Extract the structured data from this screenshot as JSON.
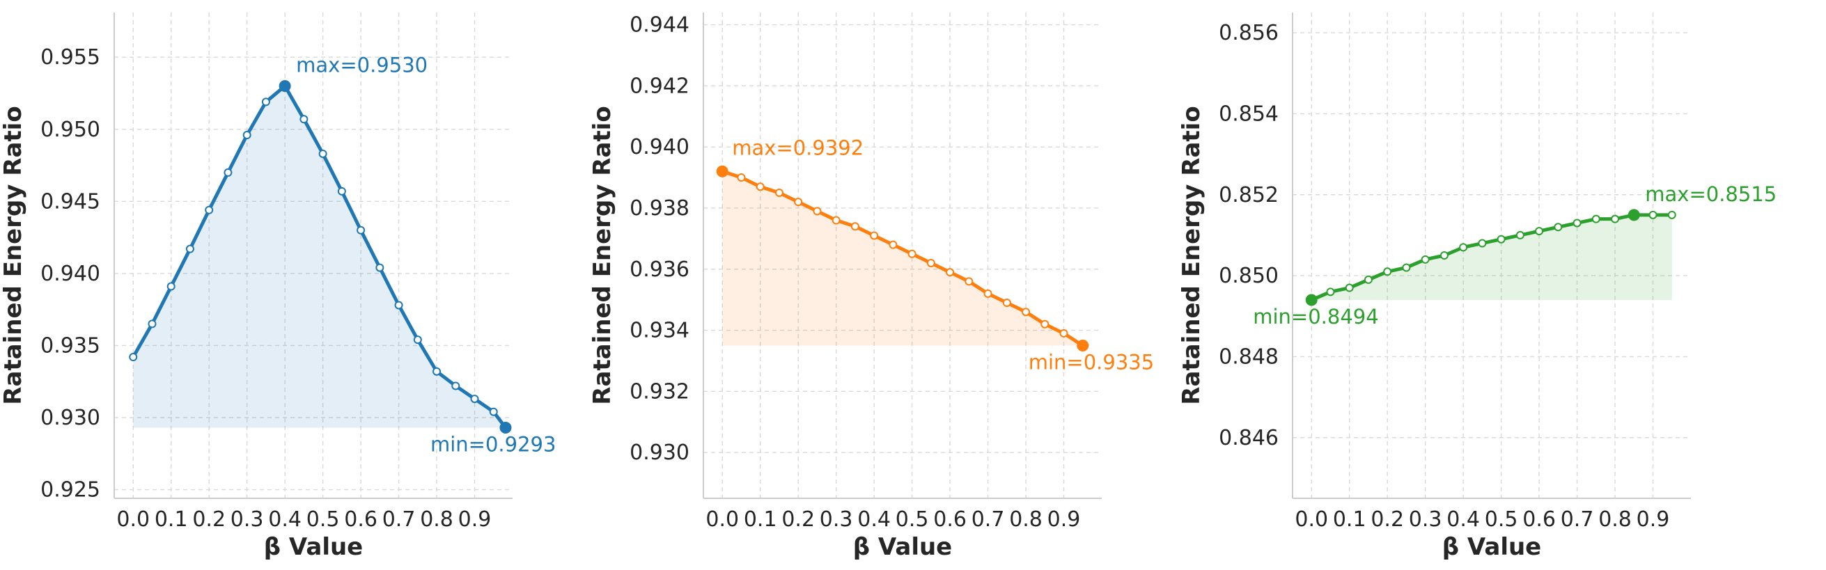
{
  "chart_data": [
    {
      "type": "line",
      "xlabel": "β Value",
      "ylabel": "Ratained Energy Ratio",
      "color": "#1f77b4",
      "x_ticks": [
        "0.0",
        "0.1",
        "0.2",
        "0.3",
        "0.4",
        "0.5",
        "0.6",
        "0.7",
        "0.8",
        "0.9"
      ],
      "y_ticks": [
        "0.925",
        "0.930",
        "0.935",
        "0.940",
        "0.945",
        "0.950",
        "0.955"
      ],
      "ylim": [
        0.9244,
        0.9581
      ],
      "xlim": [
        -0.05,
        1.0
      ],
      "fill_area": true,
      "grid": true,
      "x": [
        0.0,
        0.05,
        0.1,
        0.15,
        0.2,
        0.25,
        0.3,
        0.35,
        0.4,
        0.45,
        0.5,
        0.55,
        0.6,
        0.65,
        0.7,
        0.75,
        0.8,
        0.85,
        0.9,
        0.95
      ],
      "y": [
        0.9342,
        0.9365,
        0.9391,
        0.9417,
        0.9444,
        0.947,
        0.9496,
        0.9519,
        0.953,
        0.9507,
        0.9483,
        0.9457,
        0.943,
        0.9404,
        0.9378,
        0.9354,
        0.9332,
        0.9322,
        0.9313,
        0.9304
      ],
      "end_x": 0.9816,
      "end_y": 0.9293,
      "max_label": "max=0.9530",
      "min_label": "min=0.9293"
    },
    {
      "type": "line",
      "xlabel": "β Value",
      "ylabel": "Ratained Energy Ratio",
      "color": "#ff7f0e",
      "x_ticks": [
        "0.0",
        "0.1",
        "0.2",
        "0.3",
        "0.4",
        "0.5",
        "0.6",
        "0.7",
        "0.8",
        "0.9"
      ],
      "y_ticks": [
        "0.930",
        "0.932",
        "0.934",
        "0.936",
        "0.938",
        "0.940",
        "0.942",
        "0.944"
      ],
      "ylim": [
        0.9285,
        0.9444
      ],
      "xlim": [
        -0.05,
        1.0
      ],
      "fill_area": true,
      "grid": true,
      "x": [
        0.0,
        0.05,
        0.1,
        0.15,
        0.2,
        0.25,
        0.3,
        0.35,
        0.4,
        0.45,
        0.5,
        0.55,
        0.6,
        0.65,
        0.7,
        0.75,
        0.8,
        0.85,
        0.9,
        0.95
      ],
      "y": [
        0.9392,
        0.939,
        0.9387,
        0.9385,
        0.9382,
        0.9379,
        0.9376,
        0.9374,
        0.9371,
        0.9368,
        0.9365,
        0.9362,
        0.9359,
        0.9356,
        0.9352,
        0.9349,
        0.9346,
        0.9342,
        0.9339,
        0.9335
      ],
      "max_label": "max=0.9392",
      "min_label": "min=0.9335"
    },
    {
      "type": "line",
      "xlabel": "β Value",
      "ylabel": "Ratained Energy Ratio",
      "color": "#2ca02c",
      "x_ticks": [
        "0.0",
        "0.1",
        "0.2",
        "0.3",
        "0.4",
        "0.5",
        "0.6",
        "0.7",
        "0.8",
        "0.9"
      ],
      "y_ticks": [
        "0.846",
        "0.848",
        "0.850",
        "0.852",
        "0.854",
        "0.856"
      ],
      "ylim": [
        0.8445,
        0.8565
      ],
      "xlim": [
        -0.05,
        1.0
      ],
      "fill_area": true,
      "grid": true,
      "x": [
        0.0,
        0.05,
        0.1,
        0.15,
        0.2,
        0.25,
        0.3,
        0.35,
        0.4,
        0.45,
        0.5,
        0.55,
        0.6,
        0.65,
        0.7,
        0.75,
        0.8,
        0.85,
        0.9,
        0.95
      ],
      "y": [
        0.8494,
        0.8496,
        0.8497,
        0.8499,
        0.8501,
        0.8502,
        0.8504,
        0.8505,
        0.8507,
        0.8508,
        0.8509,
        0.851,
        0.8511,
        0.8512,
        0.8513,
        0.8514,
        0.8514,
        0.8515,
        0.8515,
        0.8515
      ],
      "max_label": "max=0.8515",
      "min_label": "min=0.8494"
    }
  ]
}
